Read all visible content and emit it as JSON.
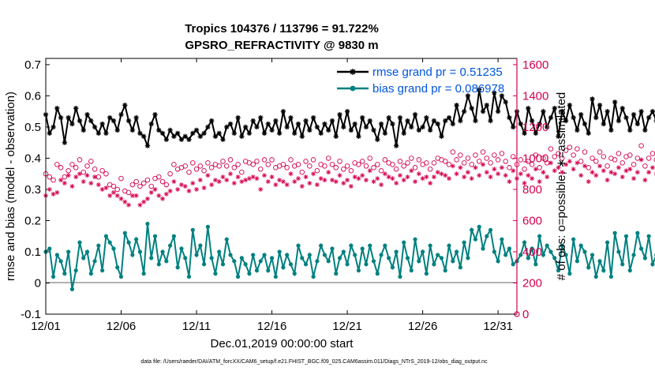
{
  "colors": {
    "rmse": "#000000",
    "bias": "#008080",
    "obs": "#D4004F",
    "legendText": "#0055DD",
    "zeroLine": "#B0B0B0"
  },
  "chart_data": {
    "type": "line",
    "title": [
      "Tropics 104376 / 113796 = 91.722%",
      "GPSRO_REFRACTIVITY @ 9830 m"
    ],
    "xlabel": "Dec.01,2019 00:00:00 start",
    "ylabel": "rmse and bias (model - observation)",
    "ylabel_right": "# of obs: o=possible; ∗=assimilated",
    "footnote": "data file: /Users/raeder/DAI/ATM_forcXX/CAM6_setup/f.e21.FHIST_BGC.f09_025.CAM6assim.011/Diags_NTrS_2019-12/obs_diag_output.nc",
    "xlim": [
      1,
      32.25
    ],
    "ylim": [
      -0.1,
      0.72
    ],
    "ylim_right": [
      0,
      1640
    ],
    "xticks": [
      1,
      6,
      11,
      16,
      21,
      26,
      31
    ],
    "xtick_labels": [
      "12/01",
      "12/06",
      "12/11",
      "12/16",
      "12/21",
      "12/26",
      "12/31"
    ],
    "yticks": [
      -0.1,
      0,
      0.1,
      0.2,
      0.3,
      0.4,
      0.5,
      0.6,
      0.7
    ],
    "ytick_labels": [
      "-0.1",
      "0",
      "0.1",
      "0.2",
      "0.3",
      "0.4",
      "0.5",
      "0.6",
      "0.7"
    ],
    "yticks_right": [
      0,
      200,
      400,
      600,
      800,
      1000,
      1200,
      1400,
      1600
    ],
    "ytick_labels_right": [
      "0",
      "200",
      "400",
      "600",
      "800",
      "1000",
      "1200",
      "1400",
      "1600"
    ],
    "legend": [
      "rmse grand pr = 0.51235",
      "bias grand pr = 0.086978"
    ],
    "legend_position": "top-right",
    "x_start": 1.0,
    "x_step": 0.25,
    "series": [
      {
        "name": "rmse",
        "axis": "left",
        "marker": "asterisk-dot",
        "values": [
          0.54,
          0.48,
          0.5,
          0.56,
          0.53,
          0.45,
          0.53,
          0.51,
          0.56,
          0.52,
          0.49,
          0.54,
          0.52,
          0.5,
          0.48,
          0.51,
          0.48,
          0.53,
          0.52,
          0.49,
          0.54,
          0.57,
          0.52,
          0.49,
          0.53,
          0.48,
          0.47,
          0.44,
          0.51,
          0.54,
          0.49,
          0.48,
          0.46,
          0.49,
          0.47,
          0.48,
          0.46,
          0.47,
          0.46,
          0.48,
          0.49,
          0.47,
          0.48,
          0.5,
          0.52,
          0.47,
          0.48,
          0.46,
          0.5,
          0.51,
          0.48,
          0.53,
          0.47,
          0.5,
          0.48,
          0.52,
          0.5,
          0.53,
          0.48,
          0.51,
          0.49,
          0.52,
          0.48,
          0.55,
          0.5,
          0.53,
          0.48,
          0.51,
          0.47,
          0.52,
          0.49,
          0.53,
          0.5,
          0.48,
          0.51,
          0.49,
          0.52,
          0.47,
          0.54,
          0.5,
          0.55,
          0.49,
          0.51,
          0.47,
          0.53,
          0.5,
          0.52,
          0.49,
          0.46,
          0.51,
          0.48,
          0.53,
          0.51,
          0.44,
          0.53,
          0.48,
          0.52,
          0.5,
          0.54,
          0.49,
          0.5,
          0.53,
          0.49,
          0.52,
          0.51,
          0.47,
          0.52,
          0.53,
          0.51,
          0.57,
          0.52,
          0.55,
          0.6,
          0.56,
          0.52,
          0.62,
          0.55,
          0.57,
          0.52,
          0.61,
          0.55,
          0.6,
          0.58,
          0.53,
          0.5,
          0.55,
          0.51,
          0.48,
          0.56,
          0.52,
          0.48,
          0.51,
          0.55,
          0.5,
          0.53,
          0.56,
          0.47,
          0.55,
          0.52,
          0.57,
          0.53,
          0.49,
          0.54,
          0.51,
          0.48,
          0.59,
          0.53,
          0.57,
          0.51,
          0.55,
          0.49,
          0.58,
          0.52,
          0.56,
          0.53,
          0.49,
          0.54,
          0.51,
          0.55,
          0.49,
          0.53,
          0.55,
          0.52,
          0.48,
          0.54,
          0.51,
          0.56,
          0.51,
          0.53,
          0.49,
          0.55,
          0.51,
          0.53,
          0.5,
          0.54,
          0.52,
          0.51,
          0.53,
          0.52,
          0.54,
          0.49,
          0.5,
          0.58,
          0.51,
          0.48,
          0.52,
          0.5,
          0.47
        ]
      },
      {
        "name": "bias",
        "axis": "left",
        "marker": "dot",
        "values": [
          0.1,
          0.11,
          0.02,
          0.09,
          0.07,
          0.03,
          0.1,
          -0.02,
          0.04,
          0.13,
          0.08,
          0.1,
          0.03,
          0.07,
          0.12,
          0.04,
          0.15,
          0.13,
          0.11,
          0.05,
          0.02,
          0.16,
          0.13,
          0.09,
          0.14,
          0.1,
          0.03,
          0.19,
          0.08,
          0.15,
          0.06,
          0.1,
          0.07,
          0.12,
          0.15,
          0.05,
          0.11,
          0.08,
          0.02,
          0.17,
          0.09,
          0.12,
          0.06,
          0.18,
          0.08,
          0.03,
          0.1,
          0.06,
          0.14,
          0.09,
          0.07,
          0.02,
          0.08,
          0.06,
          0.03,
          0.09,
          0.04,
          0.07,
          0.09,
          0.04,
          0.08,
          0.02,
          0.1,
          0.05,
          0.09,
          0.06,
          0.03,
          0.12,
          0.08,
          0.06,
          0.09,
          0.02,
          0.07,
          0.12,
          0.09,
          0.07,
          0.11,
          0.03,
          0.08,
          0.1,
          0.06,
          0.12,
          0.09,
          0.04,
          0.11,
          0.06,
          0.12,
          0.07,
          0.03,
          0.09,
          0.12,
          0.08,
          0.05,
          0.1,
          0.02,
          0.13,
          0.08,
          0.04,
          0.14,
          0.07,
          0.1,
          0.03,
          0.12,
          0.06,
          0.09,
          0.08,
          0.04,
          0.12,
          0.07,
          0.1,
          0.05,
          0.13,
          0.08,
          0.17,
          0.14,
          0.18,
          0.11,
          0.15,
          0.17,
          0.1,
          0.07,
          0.14,
          0.09,
          0.11,
          0.06,
          0.07,
          0.09,
          0.13,
          0.08,
          0.11,
          0.06,
          0.15,
          0.09,
          0.12,
          0.1,
          0.08,
          0.04,
          0.12,
          0.09,
          0.03,
          0.14,
          0.07,
          0.12,
          0.1,
          0.05,
          0.09,
          0.02,
          0.07,
          0.04,
          0.13,
          0.02,
          0.16,
          0.1,
          0.06,
          0.15,
          0.04,
          0.09,
          0.16,
          0.11,
          0.08,
          0.15,
          0.06,
          0.09,
          0.13,
          0.04,
          0.12,
          -0.03,
          0.1,
          0.06,
          0.13,
          0.08,
          0.03,
          0.15,
          0.06,
          0.09,
          0.11,
          0.07,
          0.04,
          0.14,
          0.08,
          0.1,
          0.03,
          0.12,
          0.16,
          0.09,
          0.13,
          0.06,
          0.13,
          0.04,
          0.12,
          0.07,
          0.1,
          0.08,
          0.11,
          0.14,
          0.07,
          0.11,
          0.06,
          0.04,
          0.12,
          0.08,
          0.1,
          0.07,
          0.09,
          0.07
        ]
      },
      {
        "name": "possible obs",
        "axis": "right",
        "marker": "o",
        "values": [
          900,
          880,
          860,
          960,
          940,
          880,
          920,
          960,
          940,
          990,
          910,
          950,
          980,
          930,
          880,
          920,
          900,
          830,
          820,
          800,
          870,
          790,
          780,
          830,
          850,
          820,
          840,
          860,
          820,
          870,
          880,
          850,
          830,
          900,
          960,
          930,
          940,
          950,
          910,
          970,
          930,
          950,
          920,
          970,
          940,
          960,
          950,
          980,
          950,
          990,
          940,
          960,
          910,
          980,
          970,
          960,
          980,
          930,
          990,
          960,
          990,
          940,
          950,
          960,
          940,
          990,
          950,
          960,
          910,
          980,
          950,
          990,
          920,
          960,
          950,
          1000,
          960,
          940,
          980,
          930,
          950,
          920,
          970,
          960,
          980,
          950,
          1000,
          940,
          960,
          920,
          990,
          970,
          960,
          930,
          980,
          950,
          970,
          1000,
          940,
          990,
          960,
          970,
          930,
          970,
          1000,
          990,
          980,
          960,
          1040,
          990,
          1020,
          970,
          1000,
          960,
          1020,
          980,
          1040,
          1000,
          970,
          1020,
          990,
          1030,
          980,
          940,
          1010,
          960,
          990,
          930,
          980,
          960,
          1020,
          940,
          1000,
          970,
          1060,
          1010,
          1030,
          1000,
          1050,
          1070,
          1020,
          1060,
          980,
          1040,
          940,
          1000,
          980,
          1040,
          1010,
          950,
          1000,
          990,
          1030,
          970,
          1010,
          1020,
          960,
          1000,
          1080,
          950,
          1000,
          1030,
          990,
          960,
          1020,
          1000,
          970,
          990,
          1040,
          1010,
          980,
          950,
          1000,
          1040,
          980,
          960,
          1020,
          990,
          970,
          1000,
          960,
          980,
          950,
          1000,
          970,
          1010,
          960,
          1020,
          1060,
          970,
          950
        ]
      },
      {
        "name": "assimilated obs",
        "axis": "right",
        "marker": "asterisk",
        "values": [
          760,
          800,
          770,
          780,
          860,
          840,
          890,
          820,
          880,
          900,
          850,
          890,
          840,
          880,
          830,
          800,
          810,
          760,
          780,
          760,
          740,
          720,
          700,
          760,
          760,
          700,
          720,
          740,
          780,
          800,
          760,
          740,
          770,
          790,
          850,
          800,
          830,
          820,
          790,
          840,
          800,
          860,
          810,
          890,
          830,
          860,
          850,
          880,
          860,
          900,
          840,
          880,
          850,
          860,
          870,
          880,
          870,
          800,
          890,
          850,
          880,
          830,
          860,
          850,
          830,
          900,
          850,
          870,
          820,
          880,
          840,
          900,
          830,
          870,
          860,
          910,
          860,
          850,
          890,
          840,
          860,
          820,
          880,
          870,
          890,
          860,
          920,
          850,
          870,
          830,
          900,
          880,
          870,
          840,
          890,
          860,
          880,
          920,
          850,
          900,
          870,
          880,
          840,
          880,
          910,
          900,
          890,
          870,
          950,
          900,
          940,
          880,
          910,
          870,
          940,
          890,
          960,
          910,
          880,
          930,
          900,
          940,
          890,
          850,
          920,
          870,
          900,
          840,
          890,
          870,
          930,
          850,
          910,
          880,
          970,
          920,
          940,
          910,
          960,
          980,
          930,
          970,
          890,
          950,
          850,
          910,
          890,
          950,
          920,
          860,
          910,
          900,
          940,
          880,
          920,
          930,
          870,
          910,
          990,
          860,
          910,
          940,
          900,
          870,
          930,
          910,
          880,
          900,
          950,
          920,
          890,
          860,
          910,
          950,
          890,
          870,
          930,
          900,
          880,
          910,
          870,
          890,
          860,
          910,
          880,
          920,
          870,
          930,
          960,
          880,
          860
        ]
      }
    ]
  }
}
